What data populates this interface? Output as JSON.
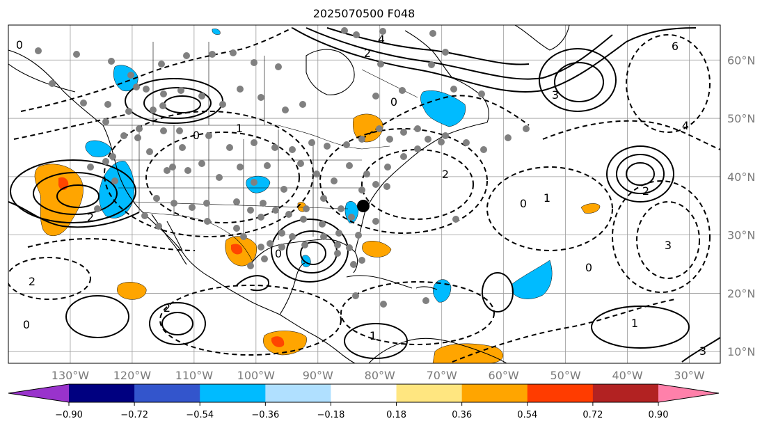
{
  "title": "2025070500 F048",
  "map": {
    "lon_range": [
      -140,
      -25
    ],
    "lat_range": [
      8,
      66
    ],
    "lon_ticks": [
      "130°W",
      "120°W",
      "110°W",
      "100°W",
      "90°W",
      "80°W",
      "70°W",
      "60°W",
      "50°W",
      "40°W",
      "30°W"
    ],
    "lat_ticks": [
      "60°N",
      "50°N",
      "40°N",
      "30°N",
      "20°N",
      "10°N"
    ],
    "contour_labels": [
      "0",
      "1",
      "2",
      "3",
      "4",
      "6"
    ]
  },
  "colorbar": {
    "ticks": [
      "−0.90",
      "−0.72",
      "−0.54",
      "−0.36",
      "−0.18",
      "0.18",
      "0.36",
      "0.54",
      "0.72",
      "0.90"
    ],
    "colors": {
      "under": "#9933cc",
      "bins": [
        "#000080",
        "#3355cc",
        "#00bbff",
        "#b0e0ff",
        "#ffffff",
        "#ffe680",
        "#ffa500",
        "#ff3c00",
        "#b22222"
      ],
      "over": "#ff80aa"
    }
  },
  "colors": {
    "positive_anomaly": "#ffa500",
    "strong_positive": "#ff4500",
    "negative_anomaly": "#00bbff",
    "station_marker": "#808080",
    "highlight_marker": "#000000"
  }
}
